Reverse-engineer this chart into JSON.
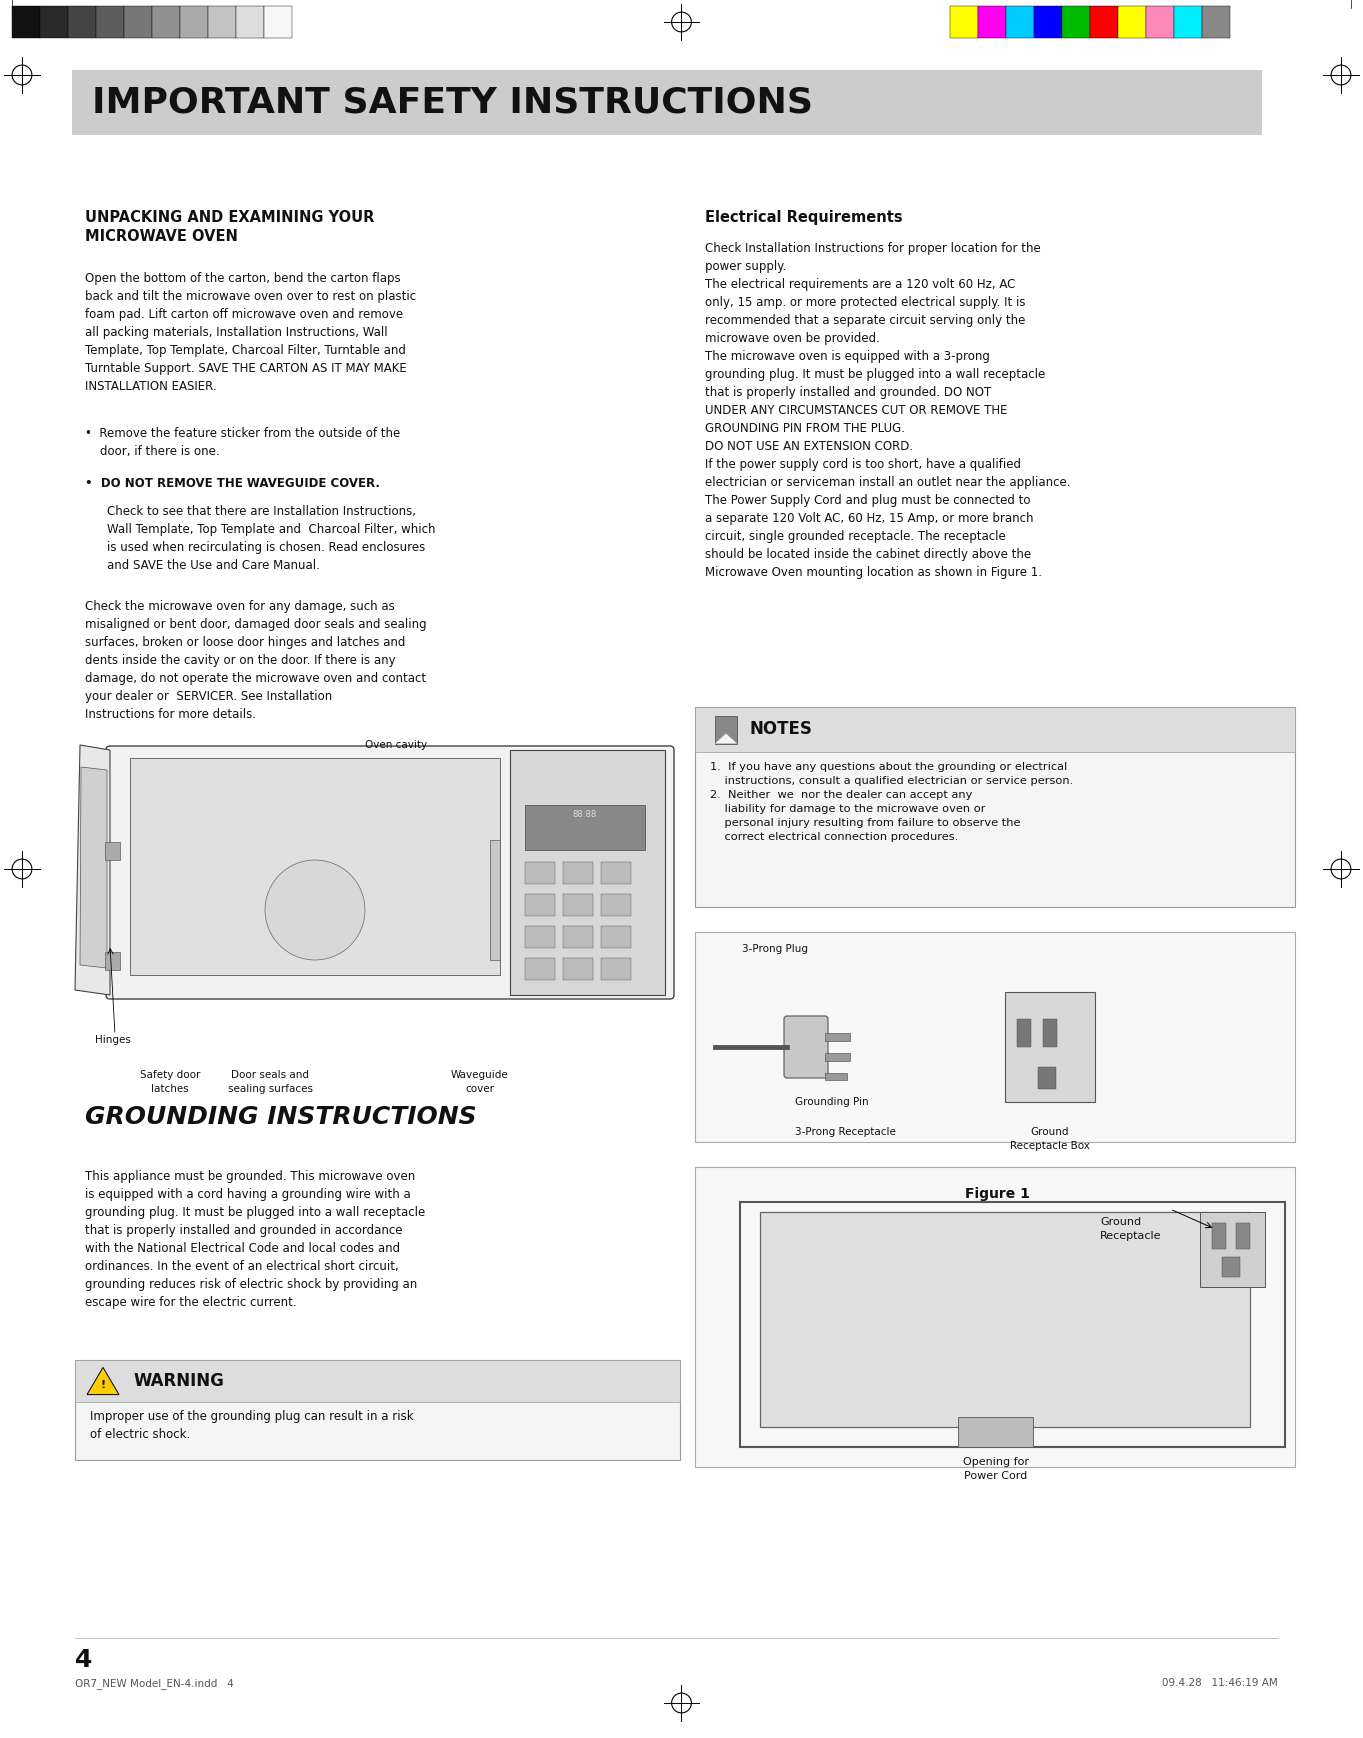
{
  "page_width": 13.63,
  "page_height": 17.38,
  "bg_color": "#ffffff",
  "header_bg": "#cccccc",
  "header_text": "IMPORTANT SAFETY INSTRUCTIONS",
  "header_font_size": 26,
  "top_marks_gray": [
    "#111111",
    "#2a2a2a",
    "#444444",
    "#5d5d5d",
    "#777777",
    "#909090",
    "#aaaaaa",
    "#c3c3c3",
    "#dddddd",
    "#f7f7f7"
  ],
  "top_marks_color": [
    "#ffff00",
    "#ff00ee",
    "#00ccff",
    "#0000ff",
    "#00bb00",
    "#ff0000",
    "#ffff00",
    "#ff88bb",
    "#00eeff",
    "#888888"
  ],
  "page_number": "4",
  "footer_left": "OR7_NEW Model_EN-4.indd   4",
  "footer_right": "09.4.28   11:46:19 AM"
}
